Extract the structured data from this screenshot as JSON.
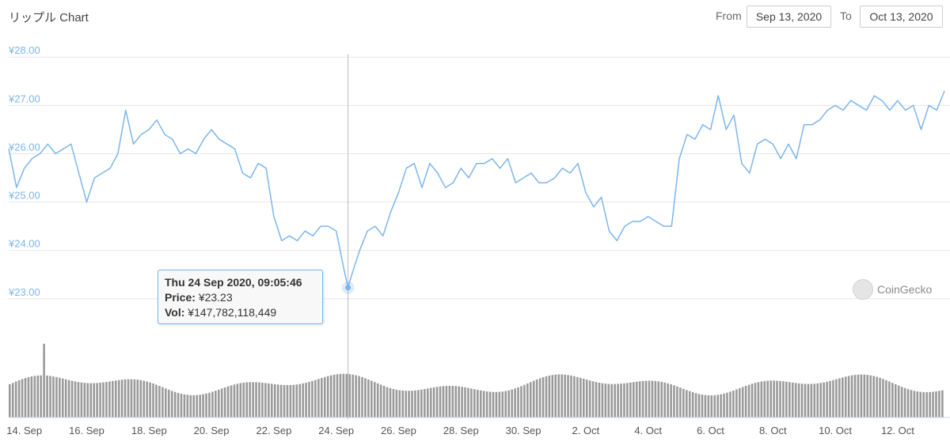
{
  "header": {
    "title": "リップル Chart",
    "from_label": "From",
    "from_value": "Sep 13, 2020",
    "to_label": "To",
    "to_value": "Oct 13, 2020"
  },
  "tooltip": {
    "date": "Thu 24 Sep 2020, 09:05:46",
    "price_label": "Price:",
    "price_value": "¥23.23",
    "vol_label": "Vol:",
    "vol_value": "¥147,782,118,449"
  },
  "brand": {
    "name": "CoinGecko"
  },
  "colors": {
    "line": "#7cb5ec",
    "grid": "#e6e6e6",
    "volume": "#9a9a9a",
    "axis_text": "#7cb5ec"
  },
  "chart_data": {
    "type": "line",
    "title": "リップル Chart",
    "y_ticks": [
      "¥23.00",
      "¥24.00",
      "¥25.00",
      "¥26.00",
      "¥27.00",
      "¥28.00"
    ],
    "x_ticks": [
      "14. Sep",
      "16. Sep",
      "18. Sep",
      "20. Sep",
      "22. Sep",
      "24. Sep",
      "26. Sep",
      "28. Sep",
      "30. Sep",
      "2. Oct",
      "4. Oct",
      "6. Oct",
      "8. Oct",
      "10. Oct",
      "12. Oct"
    ],
    "ylim": [
      22.8,
      28.2
    ],
    "xlim": [
      "2020-09-13 12:00",
      "2020-10-13 12:00"
    ],
    "series": [
      {
        "x": [
          "2020-09-13 12:00",
          "2020-09-13 18:00",
          "2020-09-14 00:00",
          "2020-09-14 06:00",
          "2020-09-14 12:00",
          "2020-09-14 18:00",
          "2020-09-15 00:00",
          "2020-09-15 06:00",
          "2020-09-15 12:00",
          "2020-09-15 18:00",
          "2020-09-16 00:00",
          "2020-09-16 06:00",
          "2020-09-16 12:00",
          "2020-09-16 18:00",
          "2020-09-17 00:00",
          "2020-09-17 06:00",
          "2020-09-17 12:00",
          "2020-09-17 18:00",
          "2020-09-18 00:00",
          "2020-09-18 06:00",
          "2020-09-18 12:00",
          "2020-09-18 18:00",
          "2020-09-19 00:00",
          "2020-09-19 06:00",
          "2020-09-19 12:00",
          "2020-09-19 18:00",
          "2020-09-20 00:00",
          "2020-09-20 06:00",
          "2020-09-20 12:00",
          "2020-09-20 18:00",
          "2020-09-21 00:00",
          "2020-09-21 06:00",
          "2020-09-21 12:00",
          "2020-09-21 18:00",
          "2020-09-22 00:00",
          "2020-09-22 06:00",
          "2020-09-22 12:00",
          "2020-09-22 18:00",
          "2020-09-23 00:00",
          "2020-09-23 06:00",
          "2020-09-23 12:00",
          "2020-09-23 18:00",
          "2020-09-24 00:00",
          "2020-09-24 06:00",
          "2020-09-24 09:05",
          "2020-09-24 12:00",
          "2020-09-24 18:00",
          "2020-09-25 00:00",
          "2020-09-25 06:00",
          "2020-09-25 12:00",
          "2020-09-25 18:00",
          "2020-09-26 00:00",
          "2020-09-26 06:00",
          "2020-09-26 12:00",
          "2020-09-26 18:00",
          "2020-09-27 00:00",
          "2020-09-27 06:00",
          "2020-09-27 12:00",
          "2020-09-27 18:00",
          "2020-09-28 00:00",
          "2020-09-28 06:00",
          "2020-09-28 12:00",
          "2020-09-28 18:00",
          "2020-09-29 00:00",
          "2020-09-29 06:00",
          "2020-09-29 12:00",
          "2020-09-29 18:00",
          "2020-09-30 00:00",
          "2020-09-30 06:00",
          "2020-09-30 12:00",
          "2020-09-30 18:00",
          "2020-10-01 00:00",
          "2020-10-01 06:00",
          "2020-10-01 12:00",
          "2020-10-01 18:00",
          "2020-10-02 00:00",
          "2020-10-02 06:00",
          "2020-10-02 12:00",
          "2020-10-02 18:00",
          "2020-10-03 00:00",
          "2020-10-03 06:00",
          "2020-10-03 12:00",
          "2020-10-03 18:00",
          "2020-10-04 00:00",
          "2020-10-04 06:00",
          "2020-10-04 12:00",
          "2020-10-04 18:00",
          "2020-10-05 00:00",
          "2020-10-05 06:00",
          "2020-10-05 12:00",
          "2020-10-05 18:00",
          "2020-10-06 00:00",
          "2020-10-06 06:00",
          "2020-10-06 12:00",
          "2020-10-06 18:00",
          "2020-10-07 00:00",
          "2020-10-07 06:00",
          "2020-10-07 12:00",
          "2020-10-07 18:00",
          "2020-10-08 00:00",
          "2020-10-08 06:00",
          "2020-10-08 12:00",
          "2020-10-08 18:00",
          "2020-10-09 00:00",
          "2020-10-09 06:00",
          "2020-10-09 12:00",
          "2020-10-09 18:00",
          "2020-10-10 00:00",
          "2020-10-10 06:00",
          "2020-10-10 12:00",
          "2020-10-10 18:00",
          "2020-10-11 00:00",
          "2020-10-11 06:00",
          "2020-10-11 12:00",
          "2020-10-11 18:00",
          "2020-10-12 00:00",
          "2020-10-12 06:00",
          "2020-10-12 12:00",
          "2020-10-12 18:00",
          "2020-10-13 00:00",
          "2020-10-13 06:00",
          "2020-10-13 12:00"
        ],
        "values": [
          26.1,
          25.3,
          25.7,
          25.9,
          26.0,
          26.2,
          26.0,
          26.1,
          26.2,
          25.6,
          25.0,
          25.5,
          25.6,
          25.7,
          26.0,
          26.9,
          26.2,
          26.4,
          26.5,
          26.7,
          26.4,
          26.3,
          26.0,
          26.1,
          26.0,
          26.3,
          26.5,
          26.3,
          26.2,
          26.1,
          25.6,
          25.5,
          25.8,
          25.7,
          24.7,
          24.2,
          24.3,
          24.2,
          24.4,
          24.3,
          24.5,
          24.5,
          24.4,
          23.6,
          23.23,
          23.5,
          24.0,
          24.4,
          24.5,
          24.3,
          24.8,
          25.2,
          25.7,
          25.8,
          25.3,
          25.8,
          25.6,
          25.3,
          25.4,
          25.7,
          25.5,
          25.8,
          25.8,
          25.9,
          25.7,
          25.9,
          25.4,
          25.5,
          25.6,
          25.4,
          25.4,
          25.5,
          25.7,
          25.6,
          25.8,
          25.2,
          24.9,
          25.1,
          24.4,
          24.2,
          24.5,
          24.6,
          24.6,
          24.7,
          24.6,
          24.5,
          24.5,
          25.9,
          26.4,
          26.3,
          26.6,
          26.5,
          27.2,
          26.5,
          26.8,
          25.8,
          25.6,
          26.2,
          26.3,
          26.2,
          25.9,
          26.2,
          25.9,
          26.6,
          26.6,
          26.7,
          26.9,
          27.0,
          26.9,
          27.1,
          27.0,
          26.9,
          27.2,
          27.1,
          26.9,
          27.1,
          26.9,
          27.0,
          26.5,
          27.0,
          26.9,
          27.3
        ]
      }
    ],
    "volume_relative": "bars under price line, peaks near 18 Sep and 7 Oct"
  }
}
